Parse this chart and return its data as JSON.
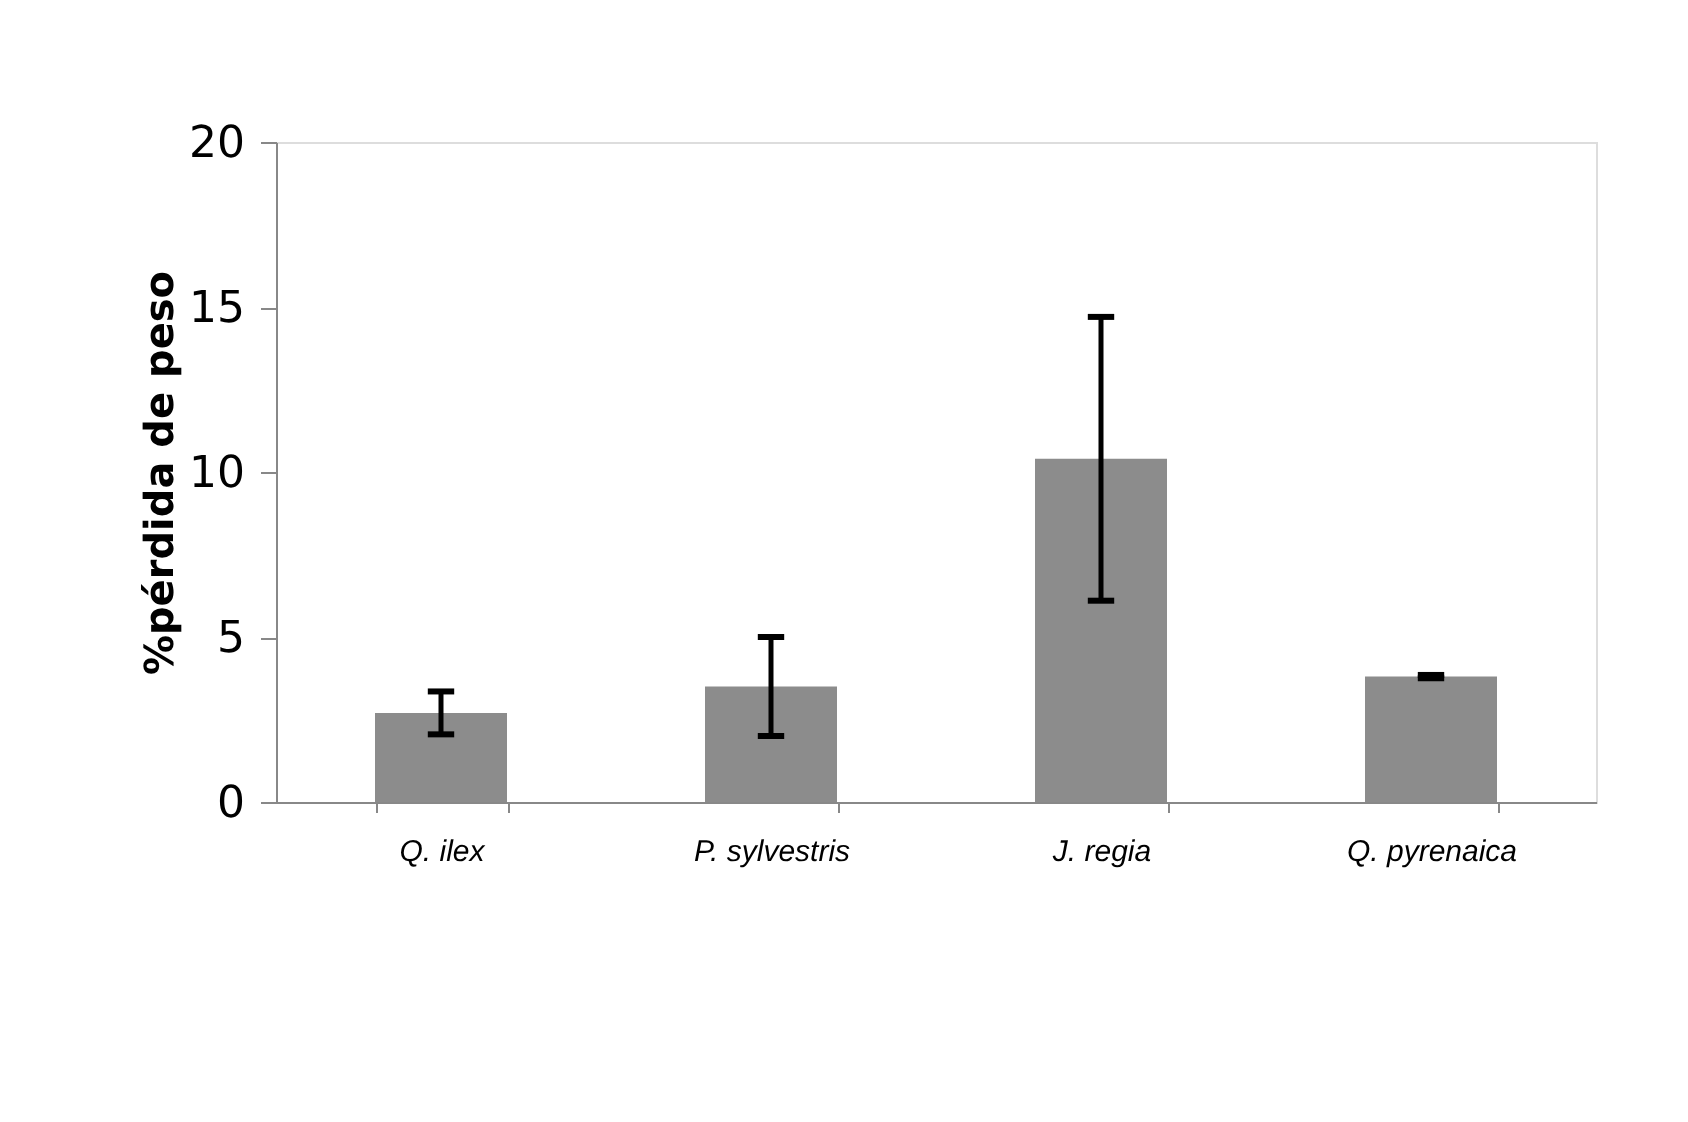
{
  "chart_data": {
    "type": "bar",
    "ylabel": "%pérdida de peso",
    "categories": [
      "Q. ilex",
      "P. sylvestris",
      "J. regia",
      "Q. pyrenaica"
    ],
    "values": [
      2.7,
      3.5,
      10.4,
      3.8
    ],
    "errors": [
      0.65,
      1.5,
      4.3,
      0.05
    ],
    "color": "#8c8c8c",
    "ylim": [
      0,
      20
    ],
    "yticks": [
      0,
      5,
      10,
      15,
      20
    ],
    "grid": false
  }
}
